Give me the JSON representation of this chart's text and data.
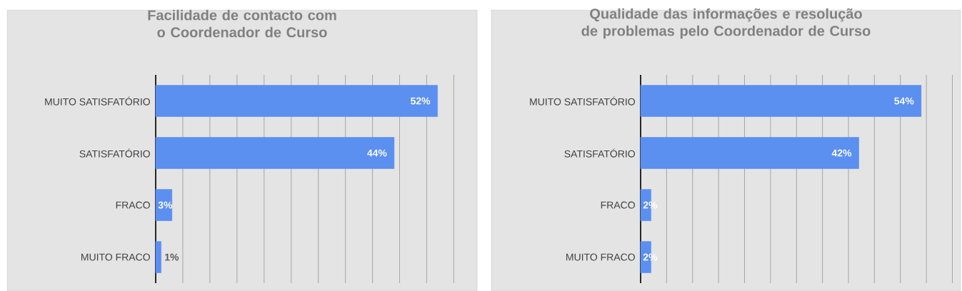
{
  "chart_data": [
    {
      "type": "bar",
      "orientation": "horizontal",
      "title": "Facilidade de contacto com o Coordenador de Curso",
      "categories": [
        "MUITO SATISFATÓRIO",
        "SATISFATÓRIO",
        "FRACO",
        "MUITO FRACO"
      ],
      "values": [
        52,
        44,
        3,
        1
      ],
      "value_labels": [
        "52%",
        "44%",
        "3%",
        "1%"
      ],
      "color": "#5b8ff0",
      "grid": "x",
      "tick_labels": "y"
    },
    {
      "type": "bar",
      "orientation": "horizontal",
      "title": "Qualidade das informações e resolução de problemas pelo Coordenador de Curso",
      "categories": [
        "MUITO SATISFATÓRIO",
        "SATISFATÓRIO",
        "FRACO",
        "MUITO FRACO"
      ],
      "values": [
        54,
        42,
        2,
        2
      ],
      "value_labels": [
        "54%",
        "42%",
        "2%",
        "2%"
      ],
      "color": "#5b8ff0",
      "grid": "x",
      "tick_labels": "y"
    }
  ]
}
